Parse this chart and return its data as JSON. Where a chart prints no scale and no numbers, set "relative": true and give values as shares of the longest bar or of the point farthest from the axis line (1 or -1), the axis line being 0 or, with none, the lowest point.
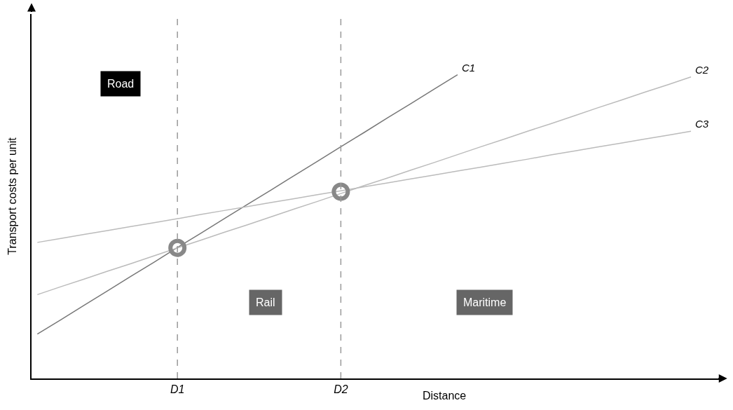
{
  "chart_data": {
    "type": "line",
    "relative": true,
    "xlabel": "Distance",
    "ylabel": "Transport costs per unit",
    "categories": [
      null,
      null,
      null,
      null,
      null,
      null,
      "D1",
      null,
      null,
      null,
      null,
      null,
      null,
      "D2",
      null,
      null,
      null,
      null,
      null,
      null,
      null,
      null,
      null,
      null,
      null,
      null,
      null,
      null,
      null
    ],
    "series": [
      {
        "name": "C1",
        "color": "#777777",
        "values": [
          0.146,
          0.193,
          0.241,
          0.288,
          0.336,
          0.383,
          0.431,
          0.478,
          0.526,
          0.573,
          0.62,
          0.668,
          0.715,
          0.763,
          0.81,
          0.858,
          0.905,
          0.953,
          1.0,
          null,
          null,
          null,
          null,
          null,
          null,
          null,
          null,
          null,
          null
        ]
      },
      {
        "name": "C2",
        "color": "#bbbbbb",
        "values": [
          0.276,
          0.302,
          0.327,
          0.353,
          0.378,
          0.404,
          0.43,
          0.455,
          0.481,
          0.506,
          0.532,
          0.558,
          0.583,
          0.609,
          0.635,
          0.66,
          0.686,
          0.711,
          0.737,
          0.763,
          0.788,
          0.814,
          0.839,
          0.865,
          0.891,
          0.916,
          0.942,
          0.967,
          0.993
        ]
      },
      {
        "name": "C3",
        "color": "#bbbbbb",
        "values": [
          0.448,
          0.461,
          0.474,
          0.487,
          0.5,
          0.513,
          0.526,
          0.54,
          0.553,
          0.566,
          0.579,
          0.592,
          0.605,
          0.618,
          0.631,
          0.644,
          0.657,
          0.67,
          0.683,
          0.696,
          0.709,
          0.722,
          0.736,
          0.749,
          0.762,
          0.775,
          0.788,
          0.801,
          0.814
        ]
      },
      {
        "type": "scatter",
        "color": "#888888",
        "marker": "circle",
        "x": [
          "D1",
          "D2"
        ],
        "values": [
          0.43,
          0.615
        ]
      }
    ],
    "ref_lines": [
      {
        "axis": "x",
        "value": "D1",
        "color": "#999999",
        "line_style": "dashed"
      },
      {
        "axis": "x",
        "value": "D2",
        "color": "#999999",
        "line_style": "dashed"
      }
    ],
    "annotations": [
      "Road",
      "Rail",
      "Maritime"
    ],
    "legend": false
  }
}
